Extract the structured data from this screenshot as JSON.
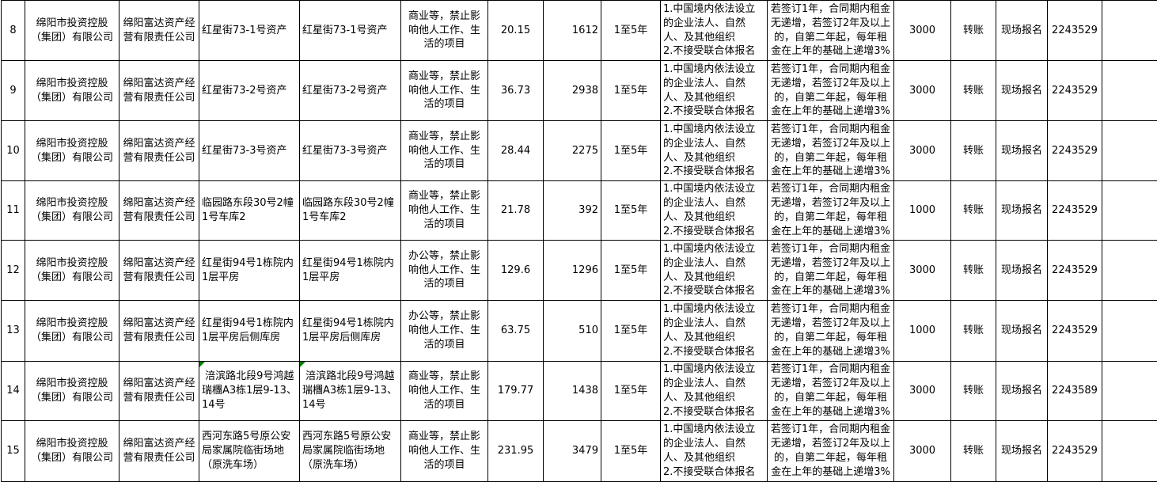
{
  "table": {
    "description_labels": {
      "row_no": "row-number",
      "owner_company": "entrusting-company",
      "operating_company": "asset-operating-company",
      "asset_name": "asset-name",
      "asset_name_2": "asset-name-duplicate",
      "usage_restriction": "permitted-usage",
      "area_sqm": "area",
      "listing_price": "listing-price",
      "lease_term": "lease-term",
      "bidder_qualification": "bidder-qualification",
      "rent_escalation": "rent-escalation-terms",
      "deposit": "deposit",
      "payment_method": "payment-method",
      "registration_method": "registration-method",
      "contact_phone": "contact-phone",
      "blank": "blank"
    },
    "columns": [
      "row_no",
      "owner_company",
      "operating_company",
      "asset_name",
      "asset_name_2",
      "usage_restriction",
      "area_sqm",
      "listing_price",
      "lease_term",
      "bidder_qualification",
      "rent_escalation",
      "deposit",
      "payment_method",
      "registration_method",
      "contact_phone",
      "blank"
    ],
    "flag_color": "#008000",
    "common": {
      "owner": "绵阳市投资控股（集团）有限公司",
      "operator": "绵阳富达资产经营有限责任公司",
      "usage_commercial": "商业等，禁止影响他人工作、生活的项目",
      "usage_office": "办公等，禁止影响他人工作、生活的项目",
      "term": "1至5年",
      "qualification": "1.中国境内依法设立的企业法人、自然人、及其他组织\n2.不接受联合体报名",
      "escalation": "若签订1年，合同期内租金无递增，若签订2年及以上的，自第二年起，每年租金在上年的基础上递增3%",
      "payment": "转账",
      "registration": "现场报名"
    },
    "rows": [
      {
        "flags": [],
        "cells": [
          "8",
          "绵阳市投资控股（集团）有限公司",
          "绵阳富达资产经营有限责任公司",
          "红星街73-1号资产",
          "红星街73-1号资产",
          "商业等，禁止影响他人工作、生活的项目",
          "20.15",
          "1612",
          "1至5年",
          "1.中国境内依法设立的企业法人、自然人、及其他组织\n2.不接受联合体报名",
          "若签订1年，合同期内租金无递增，若签订2年及以上的，自第二年起，每年租金在上年的基础上递增3%",
          "3000",
          "转账",
          "现场报名",
          "2243529",
          ""
        ]
      },
      {
        "flags": [],
        "cells": [
          "9",
          "绵阳市投资控股（集团）有限公司",
          "绵阳富达资产经营有限责任公司",
          "红星街73-2号资产",
          "红星街73-2号资产",
          "商业等，禁止影响他人工作、生活的项目",
          "36.73",
          "2938",
          "1至5年",
          "1.中国境内依法设立的企业法人、自然人、及其他组织\n2.不接受联合体报名",
          "若签订1年，合同期内租金无递增，若签订2年及以上的，自第二年起，每年租金在上年的基础上递增3%",
          "3000",
          "转账",
          "现场报名",
          "2243529",
          ""
        ]
      },
      {
        "flags": [],
        "cells": [
          "10",
          "绵阳市投资控股（集团）有限公司",
          "绵阳富达资产经营有限责任公司",
          "红星街73-3号资产",
          "红星街73-3号资产",
          "商业等，禁止影响他人工作、生活的项目",
          "28.44",
          "2275",
          "1至5年",
          "1.中国境内依法设立的企业法人、自然人、及其他组织\n2.不接受联合体报名",
          "若签订1年，合同期内租金无递增，若签订2年及以上的，自第二年起，每年租金在上年的基础上递增3%",
          "3000",
          "转账",
          "现场报名",
          "2243529",
          ""
        ]
      },
      {
        "flags": [],
        "cells": [
          "11",
          "绵阳市投资控股（集团）有限公司",
          "绵阳富达资产经营有限责任公司",
          "临园路东段30号2幢1号车库2",
          "临园路东段30号2幢1号车库2",
          "商业等，禁止影响他人工作、生活的项目",
          "21.78",
          "392",
          "1至5年",
          "1.中国境内依法设立的企业法人、自然人、及其他组织\n2.不接受联合体报名",
          "若签订1年，合同期内租金无递增，若签订2年及以上的，自第二年起，每年租金在上年的基础上递增3%",
          "1000",
          "转账",
          "现场报名",
          "2243529",
          ""
        ]
      },
      {
        "flags": [],
        "cells": [
          "12",
          "绵阳市投资控股（集团）有限公司",
          "绵阳富达资产经营有限责任公司",
          "红星街94号1栋院内1层平房",
          "红星街94号1栋院内1层平房",
          "办公等，禁止影响他人工作、生活的项目",
          "129.6",
          "1296",
          "1至5年",
          "1.中国境内依法设立的企业法人、自然人、及其他组织\n2.不接受联合体报名",
          "若签订1年，合同期内租金无递增，若签订2年及以上的，自第二年起，每年租金在上年的基础上递增3%",
          "3000",
          "转账",
          "现场报名",
          "2243529",
          ""
        ]
      },
      {
        "flags": [],
        "cells": [
          "13",
          "绵阳市投资控股（集团）有限公司",
          "绵阳富达资产经营有限责任公司",
          "红星街94号1栋院内1层平房后侧库房",
          "红星街94号1栋院内1层平房后侧库房",
          "办公等，禁止影响他人工作、生活的项目",
          "63.75",
          "510",
          "1至5年",
          "1.中国境内依法设立的企业法人、自然人、及其他组织\n2.不接受联合体报名",
          "若签订1年，合同期内租金无递增，若签订2年及以上的，自第二年起，每年租金在上年的基础上递增3%",
          "1000",
          "转账",
          "现场报名",
          "2243529",
          ""
        ]
      },
      {
        "flags": [
          3,
          4
        ],
        "cells": [
          "14",
          "绵阳市投资控股（集团）有限公司",
          "绵阳富达资产经营有限责任公司",
          " 涪滨路北段9号鸿越瑞檲A3栋1层9-13、14号",
          " 涪滨路北段9号鸿越瑞檲A3栋1层9-13、14号",
          "商业等，禁止影响他人工作、生活的项目",
          "179.77",
          "1438",
          "1至5年",
          "1.中国境内依法设立的企业法人、自然人、及其他组织\n2.不接受联合体报名",
          "若签订1年，合同期内租金无递增，若签订2年及以上的，自第二年起，每年租金在上年的基础上递增3%",
          "3000",
          "转账",
          "现场报名",
          "2243589",
          ""
        ]
      },
      {
        "flags": [],
        "cells": [
          "15",
          "绵阳市投资控股（集团）有限公司",
          "绵阳富达资产经营有限责任公司",
          "西河东路5号原公安局家属院临街场地（原洗车场）",
          "西河东路5号原公安局家属院临街场地（原洗车场）",
          "商业等，禁止影响他人工作、生活的项目",
          "231.95",
          "3479",
          "1至5年",
          "1.中国境内依法设立的企业法人、自然人、及其他组织\n2.不接受联合体报名",
          "若签订1年，合同期内租金无递增，若签订2年及以上的，自第二年起，每年租金在上年的基础上递增3%",
          "3000",
          "转账",
          "现场报名",
          "2243529",
          ""
        ]
      }
    ]
  }
}
